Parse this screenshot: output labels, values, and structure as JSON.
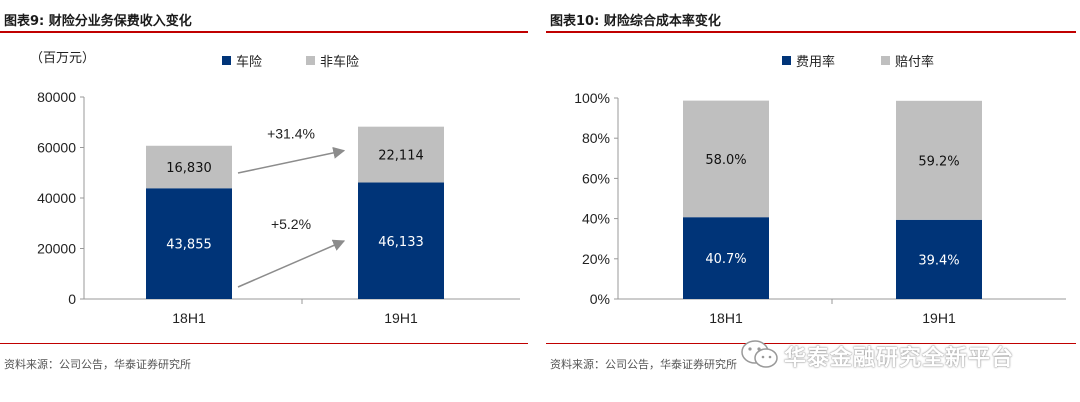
{
  "charts": [
    {
      "title": "图表9:  财险分业务保费收入变化",
      "source": "资料来源：公司公告，华泰证券研究所",
      "chart_data": {
        "type": "bar",
        "stacked": true,
        "unit_label": "（百万元）",
        "categories": [
          "18H1",
          "19H1"
        ],
        "series": [
          {
            "name": "车险",
            "color": "#003478",
            "values": [
              43855,
              46133
            ],
            "labels": [
              "43,855",
              "46,133"
            ]
          },
          {
            "name": "非车险",
            "color": "#bfbfbf",
            "values": [
              16830,
              22114
            ],
            "labels": [
              "16,830",
              "22,114"
            ]
          }
        ],
        "ylim": [
          0,
          80000
        ],
        "yticks": [
          0,
          20000,
          40000,
          60000,
          80000
        ],
        "ytick_labels": [
          "0",
          "20000",
          "40000",
          "60000",
          "80000"
        ],
        "annotations": [
          {
            "text": "+31.4%",
            "series": "非车险"
          },
          {
            "text": "+5.2%",
            "series": "车险"
          }
        ],
        "legend_position": "top"
      }
    },
    {
      "title": "图表10:  财险综合成本率变化",
      "source": "资料来源：公司公告，华泰证券研究所",
      "chart_data": {
        "type": "bar",
        "stacked": true,
        "categories": [
          "18H1",
          "19H1"
        ],
        "series": [
          {
            "name": "费用率",
            "color": "#003478",
            "values": [
              40.7,
              39.4
            ],
            "labels": [
              "40.7%",
              "39.4%"
            ]
          },
          {
            "name": "赔付率",
            "color": "#bfbfbf",
            "values": [
              58.0,
              59.2
            ],
            "labels": [
              "58.0%",
              "59.2%"
            ]
          }
        ],
        "ylim": [
          0,
          100
        ],
        "yticks": [
          0,
          20,
          40,
          60,
          80,
          100
        ],
        "ytick_labels": [
          "0%",
          "20%",
          "40%",
          "60%",
          "80%",
          "100%"
        ],
        "legend_position": "top"
      }
    }
  ],
  "watermark": {
    "text": "华泰金融研究全新平台",
    "icon": "wechat-icon"
  }
}
